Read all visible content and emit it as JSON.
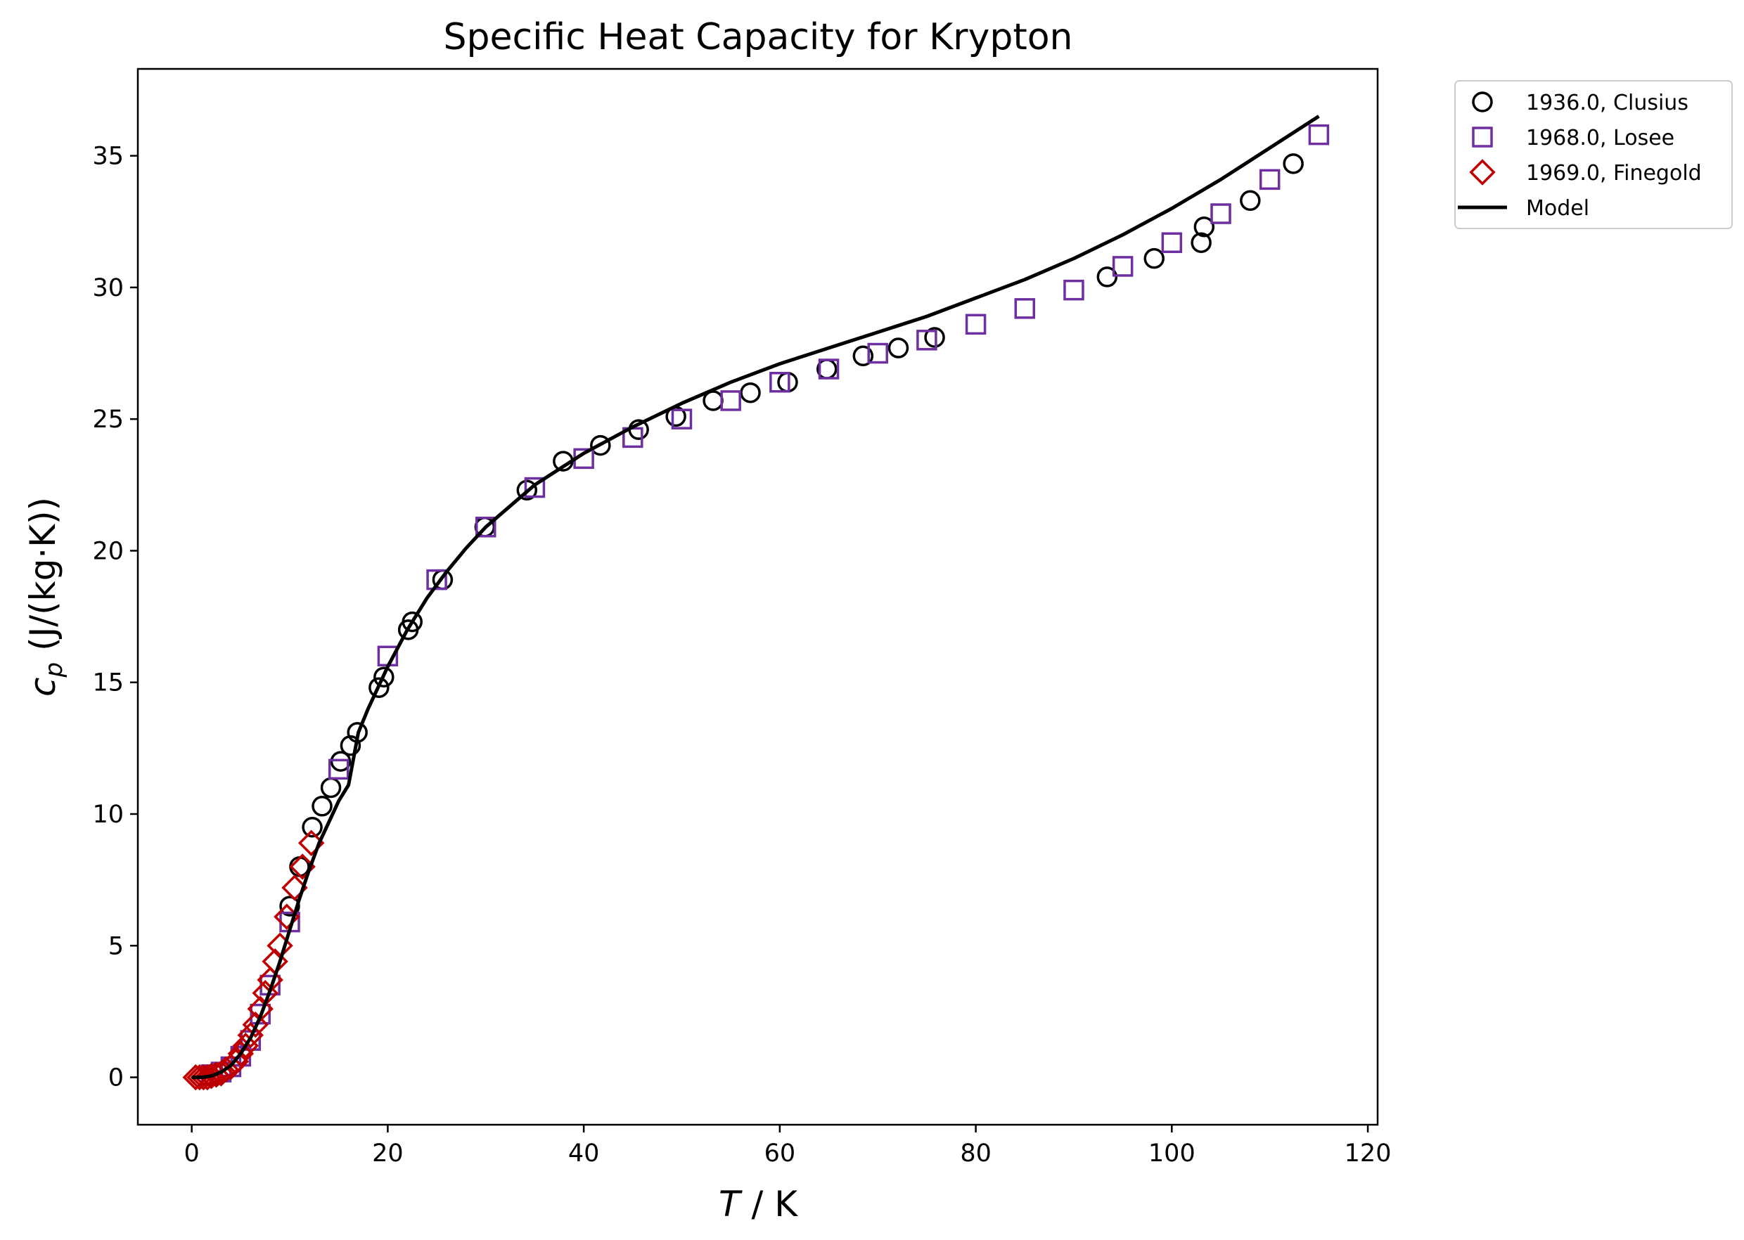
{
  "chart_data": {
    "type": "scatter",
    "title": "Specific Heat Capacity for Krypton",
    "xlabel": {
      "symbol": "T",
      "rest": " / K"
    },
    "ylabel": {
      "symbol": "c",
      "sub": "p",
      "rest": " (J/(kg·K))"
    },
    "xlim": [
      -5.5,
      121
    ],
    "ylim": [
      -1.8,
      38.3
    ],
    "xticks": [
      0,
      20,
      40,
      60,
      80,
      100,
      120
    ],
    "yticks": [
      0,
      5,
      10,
      15,
      20,
      25,
      30,
      35
    ],
    "grid": false,
    "legend_position": "outside-top-right",
    "series": [
      {
        "name": "1936.0, Clusius",
        "marker": "circle",
        "color": "#000000",
        "points": [
          [
            10.0,
            6.5
          ],
          [
            11.0,
            8.0
          ],
          [
            12.3,
            9.5
          ],
          [
            13.3,
            10.3
          ],
          [
            14.2,
            11.0
          ],
          [
            15.2,
            12.0
          ],
          [
            16.2,
            12.6
          ],
          [
            16.9,
            13.1
          ],
          [
            19.1,
            14.8
          ],
          [
            19.6,
            15.2
          ],
          [
            22.1,
            17.0
          ],
          [
            22.5,
            17.3
          ],
          [
            25.6,
            18.9
          ],
          [
            29.9,
            20.9
          ],
          [
            34.2,
            22.3
          ],
          [
            37.9,
            23.4
          ],
          [
            41.7,
            24.0
          ],
          [
            45.6,
            24.6
          ],
          [
            49.4,
            25.1
          ],
          [
            53.2,
            25.7
          ],
          [
            57.0,
            26.0
          ],
          [
            60.8,
            26.4
          ],
          [
            64.8,
            26.9
          ],
          [
            68.5,
            27.4
          ],
          [
            72.1,
            27.7
          ],
          [
            75.8,
            28.1
          ],
          [
            93.4,
            30.4
          ],
          [
            98.2,
            31.1
          ],
          [
            103.0,
            31.7
          ],
          [
            103.3,
            32.3
          ],
          [
            108.0,
            33.3
          ],
          [
            112.4,
            34.7
          ]
        ]
      },
      {
        "name": "1968.0, Losee",
        "marker": "square",
        "color": "#6e2fa0",
        "points": [
          [
            2.0,
            0.1
          ],
          [
            3.0,
            0.2
          ],
          [
            4.0,
            0.4
          ],
          [
            5.0,
            0.8
          ],
          [
            6.0,
            1.4
          ],
          [
            7.0,
            2.4
          ],
          [
            8.0,
            3.5
          ],
          [
            10.0,
            5.9
          ],
          [
            15.0,
            11.7
          ],
          [
            20.0,
            16.0
          ],
          [
            25.0,
            18.9
          ],
          [
            30.0,
            20.9
          ],
          [
            35.0,
            22.4
          ],
          [
            40.0,
            23.5
          ],
          [
            45.0,
            24.3
          ],
          [
            50.0,
            25.0
          ],
          [
            55.0,
            25.7
          ],
          [
            60.0,
            26.4
          ],
          [
            65.0,
            26.9
          ],
          [
            70.0,
            27.5
          ],
          [
            75.0,
            28.0
          ],
          [
            80.0,
            28.6
          ],
          [
            85.0,
            29.2
          ],
          [
            90.0,
            29.9
          ],
          [
            95.0,
            30.8
          ],
          [
            100.0,
            31.7
          ],
          [
            105.0,
            32.8
          ],
          [
            110.0,
            34.1
          ],
          [
            115.0,
            35.8
          ]
        ]
      },
      {
        "name": "1969.0, Finegold",
        "marker": "diamond",
        "color": "#c00000",
        "points": [
          [
            0.4,
            0.0
          ],
          [
            0.8,
            0.0
          ],
          [
            1.2,
            0.0
          ],
          [
            1.6,
            0.0
          ],
          [
            2.0,
            0.05
          ],
          [
            2.5,
            0.1
          ],
          [
            3.0,
            0.15
          ],
          [
            3.5,
            0.3
          ],
          [
            4.0,
            0.4
          ],
          [
            4.5,
            0.6
          ],
          [
            5.0,
            0.9
          ],
          [
            5.5,
            1.2
          ],
          [
            6.0,
            1.6
          ],
          [
            6.5,
            2.0
          ],
          [
            7.0,
            2.6
          ],
          [
            7.5,
            3.2
          ],
          [
            8.0,
            3.7
          ],
          [
            8.5,
            4.4
          ],
          [
            9.0,
            5.0
          ],
          [
            9.7,
            6.1
          ],
          [
            10.5,
            7.2
          ],
          [
            11.3,
            8.0
          ],
          [
            12.2,
            8.9
          ]
        ]
      },
      {
        "name": "Model",
        "marker": "line",
        "color": "#000000",
        "points": [
          [
            0.0,
            0.0
          ],
          [
            1.0,
            0.0
          ],
          [
            2.0,
            0.05
          ],
          [
            3.0,
            0.2
          ],
          [
            4.0,
            0.45
          ],
          [
            5.0,
            0.9
          ],
          [
            6.0,
            1.5
          ],
          [
            7.0,
            2.3
          ],
          [
            8.0,
            3.3
          ],
          [
            9.0,
            4.4
          ],
          [
            10.0,
            5.6
          ],
          [
            11.0,
            6.8
          ],
          [
            12.0,
            7.9
          ],
          [
            13.0,
            8.9
          ],
          [
            14.0,
            9.7
          ],
          [
            15.0,
            10.5
          ],
          [
            16.0,
            11.1
          ],
          [
            17.0,
            13.1
          ],
          [
            18.0,
            14.0
          ],
          [
            20.0,
            15.6
          ],
          [
            22.0,
            17.0
          ],
          [
            24.0,
            18.2
          ],
          [
            26.0,
            19.2
          ],
          [
            28.0,
            20.1
          ],
          [
            30.0,
            20.9
          ],
          [
            35.0,
            22.5
          ],
          [
            40.0,
            23.7
          ],
          [
            45.0,
            24.7
          ],
          [
            50.0,
            25.6
          ],
          [
            55.0,
            26.4
          ],
          [
            60.0,
            27.1
          ],
          [
            65.0,
            27.7
          ],
          [
            70.0,
            28.3
          ],
          [
            75.0,
            28.9
          ],
          [
            80.0,
            29.6
          ],
          [
            85.0,
            30.3
          ],
          [
            90.0,
            31.1
          ],
          [
            95.0,
            32.0
          ],
          [
            100.0,
            33.0
          ],
          [
            105.0,
            34.1
          ],
          [
            110.0,
            35.3
          ],
          [
            115.0,
            36.5
          ]
        ]
      }
    ]
  }
}
